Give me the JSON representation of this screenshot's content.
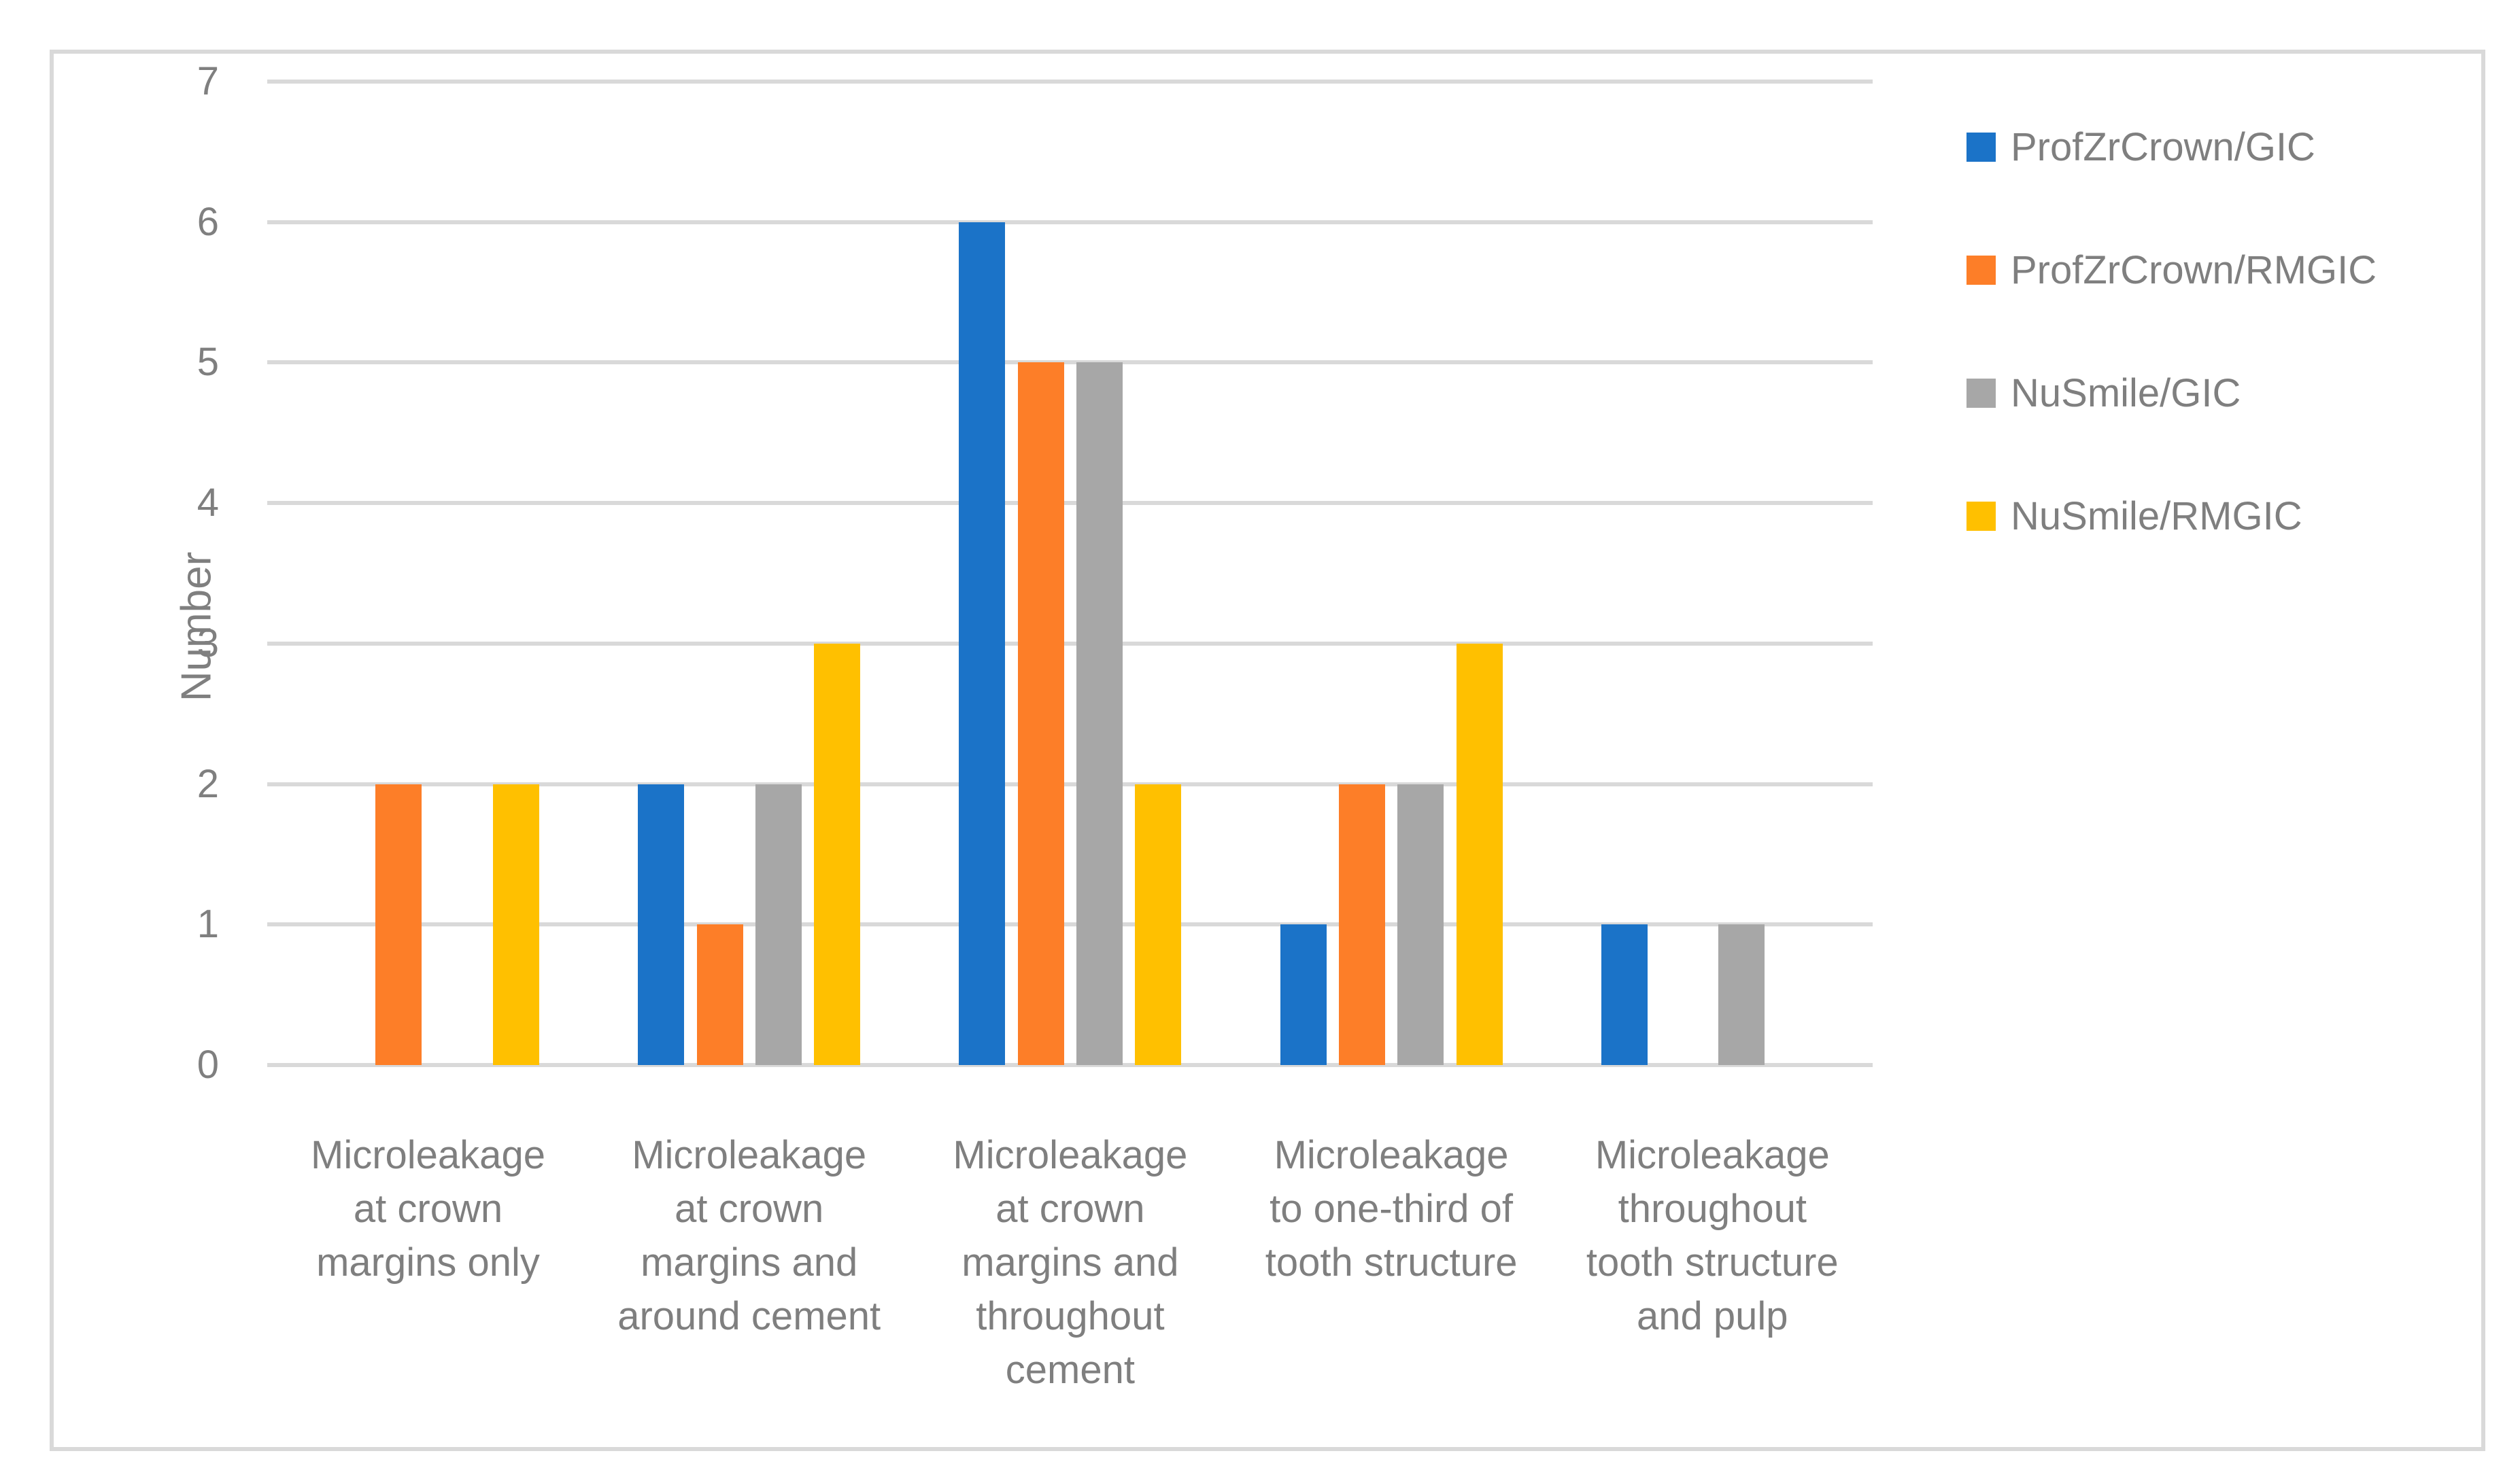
{
  "chart_data": {
    "type": "bar",
    "title": "",
    "xlabel": "",
    "ylabel": "Number",
    "ylim": [
      0,
      7
    ],
    "yticks": [
      0,
      1,
      2,
      3,
      4,
      5,
      6,
      7
    ],
    "grid": true,
    "legend_position": "right",
    "categories": [
      {
        "label": "Microleakage at crown margins only",
        "lines": [
          "Microleakage",
          "at crown",
          "margins only"
        ]
      },
      {
        "label": "Microleakage at crown margins and around cement",
        "lines": [
          "Microleakage",
          "at crown",
          "margins and",
          "around cement"
        ]
      },
      {
        "label": "Microleakage at crown margins and throughout cement",
        "lines": [
          "Microleakage",
          "at crown",
          "margins and",
          "throughout",
          "cement"
        ]
      },
      {
        "label": "Microleakage to one-third of tooth structure",
        "lines": [
          "Microleakage",
          "to one-third of",
          "tooth structure"
        ]
      },
      {
        "label": "Microleakage throughout tooth structure and pulp",
        "lines": [
          "Microleakage",
          "throughout",
          "tooth structure",
          "and pulp"
        ]
      }
    ],
    "series": [
      {
        "name": "ProfZrCrown/GIC",
        "color": "#1B73C8",
        "values": [
          0,
          2,
          6,
          1,
          1
        ]
      },
      {
        "name": "ProfZrCrown/RMGIC",
        "color": "#FD7E28",
        "values": [
          2,
          1,
          5,
          2,
          0
        ]
      },
      {
        "name": "NuSmile/GIC",
        "color": "#A7A7A7",
        "values": [
          0,
          2,
          5,
          2,
          1
        ]
      },
      {
        "name": "NuSmile/RMGIC",
        "color": "#FFC000",
        "values": [
          2,
          3,
          2,
          3,
          0
        ]
      }
    ]
  },
  "colors": {
    "gridline": "#D9D9D9",
    "frame_border": "#D9D9D9",
    "text": "#7F7F7F",
    "background": "#FFFFFF"
  }
}
